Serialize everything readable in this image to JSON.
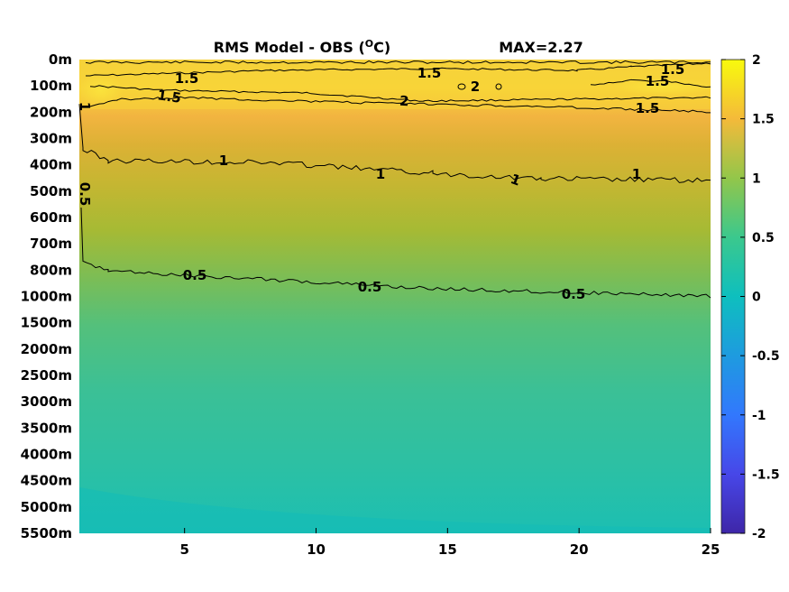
{
  "chart_data": {
    "type": "heatmap",
    "title": "RMS Model - OBS (",
    "title_unit": "O",
    "title_suffix": "C)",
    "annotation": "MAX=2.27",
    "xlabel": "",
    "ylabel": "",
    "xlim": [
      1,
      25
    ],
    "x_ticks": [
      5,
      10,
      15,
      20,
      25
    ],
    "y_ticks": [
      "0m",
      "100m",
      "200m",
      "300m",
      "400m",
      "500m",
      "600m",
      "700m",
      "800m",
      "1000m",
      "1500m",
      "2000m",
      "2500m",
      "3000m",
      "3500m",
      "4000m",
      "4500m",
      "5000m",
      "5500m"
    ],
    "colorbar": {
      "range": [
        -2,
        2
      ],
      "ticks": [
        "2",
        "1.5",
        "1",
        "0.5",
        "0",
        "-0.5",
        "-1",
        "-1.5",
        "-2"
      ]
    },
    "depth_rms_profile": [
      {
        "depth": "0m",
        "value": 1.6
      },
      {
        "depth": "100m",
        "value": 1.85
      },
      {
        "depth": "200m",
        "value": 1.5
      },
      {
        "depth": "300m",
        "value": 1.25
      },
      {
        "depth": "400m",
        "value": 1.05
      },
      {
        "depth": "500m",
        "value": 0.95
      },
      {
        "depth": "600m",
        "value": 0.82
      },
      {
        "depth": "700m",
        "value": 0.72
      },
      {
        "depth": "800m",
        "value": 0.6
      },
      {
        "depth": "1000m",
        "value": 0.48
      },
      {
        "depth": "1500m",
        "value": 0.38
      },
      {
        "depth": "2000m",
        "value": 0.32
      },
      {
        "depth": "2500m",
        "value": 0.3
      },
      {
        "depth": "3000m",
        "value": 0.26
      },
      {
        "depth": "3500m",
        "value": 0.22
      },
      {
        "depth": "4000m",
        "value": 0.2
      },
      {
        "depth": "4500m",
        "value": 0.16
      },
      {
        "depth": "5000m",
        "value": 0.12
      },
      {
        "depth": "5500m",
        "value": 0.1
      }
    ],
    "contour_labels": [
      "1.5",
      "1.5",
      "1.5",
      "2",
      "2",
      "1.5",
      "1.5",
      "1.5",
      "1",
      "1",
      "1",
      "1",
      "1",
      "0.5",
      "0.5",
      "0.5",
      "0.5"
    ],
    "grid": false
  }
}
